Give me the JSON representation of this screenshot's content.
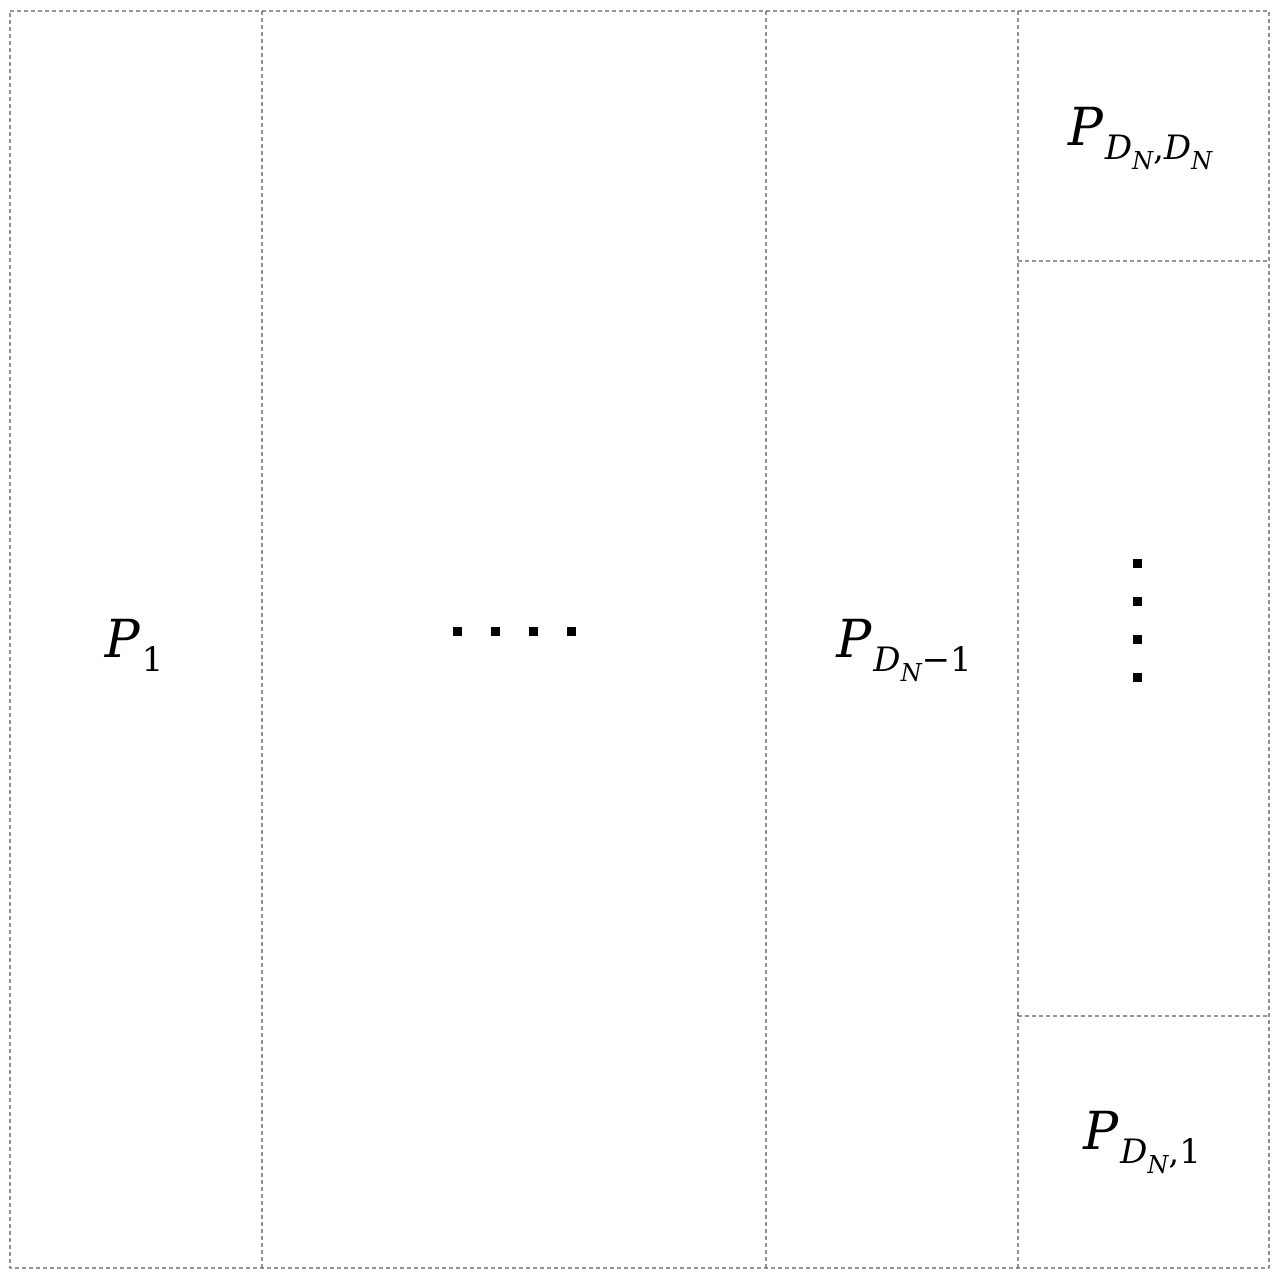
{
  "diagram": {
    "cells": {
      "p1": {
        "symbol": "P",
        "subscript": "1"
      },
      "middle": {
        "ellipsis": "horizontal-dots"
      },
      "p_dn_minus_1": {
        "symbol": "P",
        "sub_symbol": "D",
        "sub_sub": "N",
        "sub_tail": "−1"
      },
      "p_dn_dn": {
        "symbol": "P",
        "sub_symbol_a": "D",
        "sub_sub_a": "N",
        "comma": ",",
        "sub_symbol_b": "D",
        "sub_sub_b": "N"
      },
      "right_middle": {
        "ellipsis": "vertical-dots"
      },
      "p_dn_1": {
        "symbol": "P",
        "sub_symbol": "D",
        "sub_sub": "N",
        "comma": ",",
        "sub_tail": "1"
      }
    },
    "colors": {
      "line": "#555555",
      "text": "#000000",
      "background": "#ffffff"
    }
  }
}
